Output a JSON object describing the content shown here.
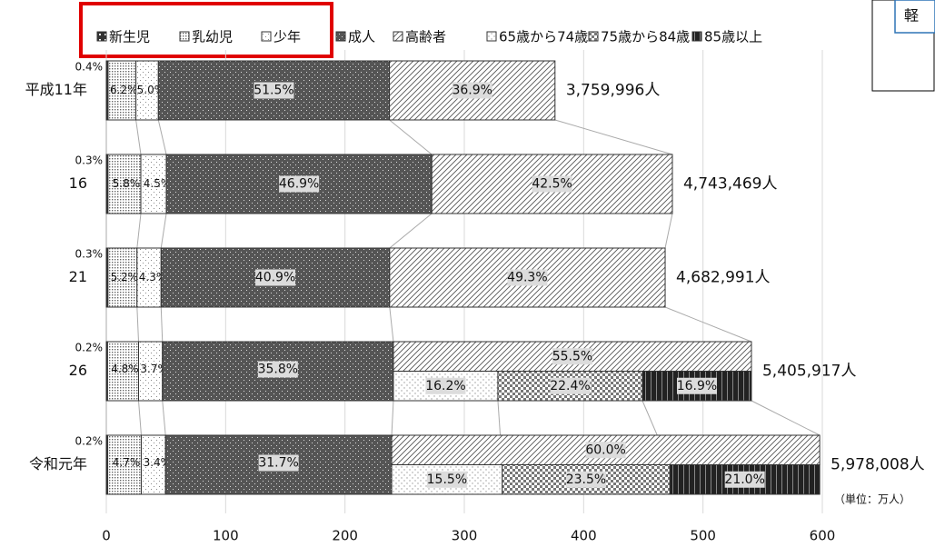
{
  "chart_data": {
    "type": "bar",
    "orientation": "horizontal",
    "stacked": true,
    "categories": [
      "平成11年",
      "16",
      "21",
      "26",
      "令和元年"
    ],
    "xlim": [
      0,
      600
    ],
    "xticks": [
      0,
      100,
      200,
      300,
      400,
      500,
      600
    ],
    "grid": true,
    "legend": "top",
    "unit_label": "（単位：万人）",
    "totals": {
      "values": [
        375.9996,
        474.3469,
        468.2991,
        540.5917,
        597.8008
      ],
      "value_labels": [
        "3,759,996人",
        "4,743,469人",
        "4,682,991人",
        "5,405,917人",
        "5,978,008人"
      ]
    },
    "series": [
      {
        "name": "新生児",
        "color": "#333333",
        "values": [
          0.4,
          0.3,
          0.3,
          0.2,
          0.2
        ],
        "value_labels": [
          "0.4%",
          "0.3%",
          "0.3%",
          "0.2%",
          "0.2%"
        ]
      },
      {
        "name": "乳幼児",
        "color": "#666666",
        "values": [
          6.2,
          5.8,
          5.2,
          4.8,
          4.7
        ],
        "value_labels": [
          "6.2%",
          "5.8%",
          "5.2%",
          "4.8%",
          "4.7%"
        ]
      },
      {
        "name": "少年",
        "color": "#888888",
        "values": [
          5.0,
          4.5,
          4.3,
          3.7,
          3.4
        ],
        "value_labels": [
          "5.0%",
          "4.5%",
          "4.3%",
          "3.7%",
          "3.4%"
        ]
      },
      {
        "name": "成人",
        "color": "#555555",
        "values": [
          51.5,
          46.9,
          40.9,
          35.8,
          31.7
        ],
        "value_labels": [
          "51.5%",
          "46.9%",
          "40.9%",
          "35.8%",
          "31.7%"
        ]
      },
      {
        "name": "高齢者",
        "color": "#555555",
        "values": [
          36.9,
          42.5,
          49.3,
          55.5,
          60.0
        ],
        "value_labels": [
          "36.9%",
          "42.5%",
          "49.3%",
          "55.5%",
          "60.0%"
        ],
        "breakdown": [
          {
            "name": "65歳から74歳",
            "color": "#999999",
            "values": [
              null,
              null,
              null,
              16.2,
              15.5
            ],
            "value_labels": [
              null,
              null,
              null,
              "16.2%",
              "15.5%"
            ]
          },
          {
            "name": "75歳から84歳",
            "color": "#777777",
            "values": [
              null,
              null,
              null,
              22.4,
              23.5
            ],
            "value_labels": [
              null,
              null,
              null,
              "22.4%",
              "23.5%"
            ]
          },
          {
            "name": "85歳以上",
            "color": "#222222",
            "values": [
              null,
              null,
              null,
              16.9,
              21.0
            ],
            "value_labels": [
              null,
              null,
              null,
              "16.9%",
              "21.0%"
            ]
          }
        ]
      }
    ]
  },
  "side_note": "軽"
}
